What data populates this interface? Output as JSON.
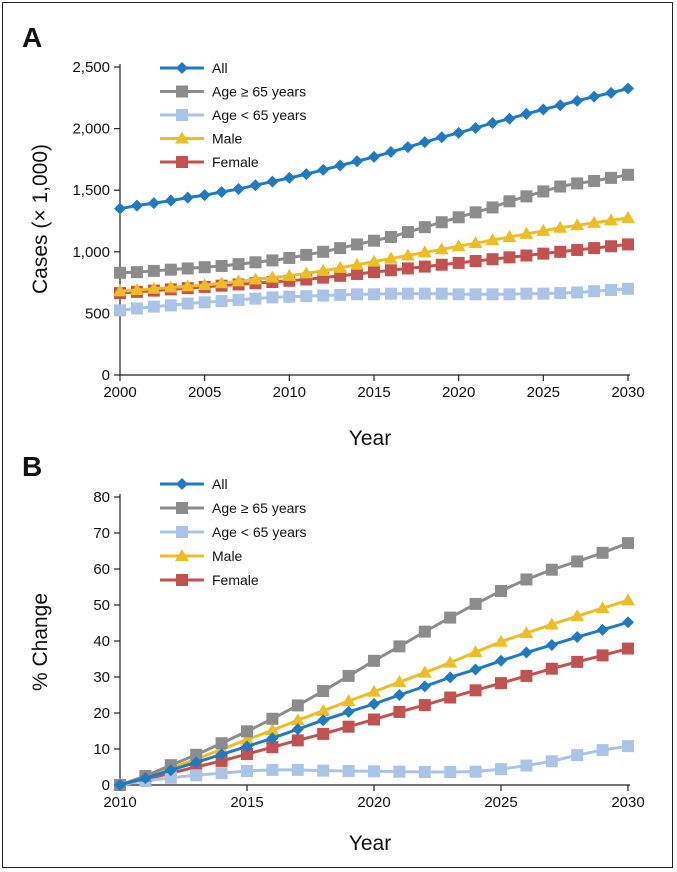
{
  "colors": {
    "All": "#1f7bc1",
    "Age ≥ 65 years": "#8c8c8c",
    "Age < 65 years": "#a9c4e6",
    "Male": "#eebd25",
    "Female": "#c1524f"
  },
  "chart_data": [
    {
      "panel": "A",
      "type": "line",
      "xlabel": "Year",
      "ylabel": "Cases (× 1,000)",
      "xlim": [
        2000,
        2030
      ],
      "ylim": [
        0,
        2500
      ],
      "xticks": [
        "2000",
        "2005",
        "2010",
        "2015",
        "2020",
        "2025",
        "2030"
      ],
      "yticks": [
        "0",
        "500",
        "1,000",
        "1,500",
        "2,000",
        "2,500"
      ],
      "legend_position": "top-left",
      "x": [
        2000,
        2001,
        2002,
        2003,
        2004,
        2005,
        2006,
        2007,
        2008,
        2009,
        2010,
        2011,
        2012,
        2013,
        2014,
        2015,
        2016,
        2017,
        2018,
        2019,
        2020,
        2021,
        2022,
        2023,
        2024,
        2025,
        2026,
        2027,
        2028,
        2029,
        2030
      ],
      "series": [
        {
          "name": "All",
          "marker": "diamond",
          "values": [
            1350,
            1375,
            1395,
            1415,
            1440,
            1460,
            1485,
            1510,
            1540,
            1570,
            1600,
            1630,
            1665,
            1700,
            1735,
            1770,
            1810,
            1850,
            1890,
            1930,
            1965,
            2005,
            2045,
            2080,
            2120,
            2155,
            2190,
            2225,
            2260,
            2290,
            2325
          ]
        },
        {
          "name": "Age ≥ 65 years",
          "marker": "square",
          "values": [
            830,
            835,
            845,
            855,
            865,
            875,
            885,
            900,
            915,
            930,
            950,
            975,
            1000,
            1030,
            1060,
            1090,
            1120,
            1160,
            1200,
            1240,
            1280,
            1320,
            1360,
            1410,
            1450,
            1490,
            1530,
            1555,
            1575,
            1600,
            1625
          ]
        },
        {
          "name": "Age < 65 years",
          "marker": "square",
          "values": [
            525,
            540,
            555,
            565,
            580,
            590,
            600,
            610,
            620,
            630,
            635,
            640,
            645,
            650,
            655,
            655,
            660,
            660,
            660,
            660,
            655,
            655,
            655,
            655,
            660,
            660,
            665,
            670,
            680,
            690,
            700
          ]
        },
        {
          "name": "Male",
          "marker": "triangle",
          "values": [
            680,
            690,
            700,
            710,
            720,
            730,
            745,
            760,
            775,
            790,
            805,
            825,
            845,
            870,
            895,
            920,
            945,
            970,
            995,
            1020,
            1045,
            1070,
            1095,
            1120,
            1145,
            1170,
            1195,
            1215,
            1235,
            1255,
            1275
          ]
        },
        {
          "name": "Female",
          "marker": "square",
          "values": [
            665,
            675,
            685,
            695,
            705,
            715,
            725,
            735,
            745,
            755,
            765,
            775,
            790,
            805,
            820,
            835,
            850,
            865,
            880,
            895,
            910,
            925,
            940,
            955,
            970,
            985,
            1000,
            1015,
            1030,
            1045,
            1060
          ]
        }
      ]
    },
    {
      "panel": "B",
      "type": "line",
      "xlabel": "Year",
      "ylabel": "% Change",
      "xlim": [
        2010,
        2030
      ],
      "ylim": [
        0,
        80
      ],
      "xticks": [
        "2010",
        "2015",
        "2020",
        "2025",
        "2030"
      ],
      "yticks": [
        "0",
        "10",
        "20",
        "30",
        "40",
        "50",
        "60",
        "70",
        "80"
      ],
      "legend_position": "top-left",
      "x": [
        2010,
        2011,
        2012,
        2013,
        2014,
        2015,
        2016,
        2017,
        2018,
        2019,
        2020,
        2021,
        2022,
        2023,
        2024,
        2025,
        2026,
        2027,
        2028,
        2029,
        2030
      ],
      "series": [
        {
          "name": "All",
          "marker": "diamond",
          "values": [
            0,
            1.9,
            4.1,
            6.3,
            8.5,
            10.7,
            13,
            15.5,
            18,
            20.3,
            22.5,
            25,
            27.4,
            29.9,
            32.1,
            34.5,
            36.8,
            38.9,
            41.1,
            43.1,
            45.2
          ]
        },
        {
          "name": "Age ≥ 65 years",
          "marker": "square",
          "values": [
            0,
            2.5,
            5.5,
            8.4,
            11.6,
            14.9,
            18.4,
            22.1,
            26.1,
            30.3,
            34.5,
            38.5,
            42.6,
            46.5,
            50.3,
            53.9,
            57.1,
            59.8,
            62.1,
            64.5,
            67.2
          ]
        },
        {
          "name": "Age < 65 years",
          "marker": "square",
          "values": [
            0,
            1.1,
            2,
            2.7,
            3.3,
            3.9,
            4.2,
            4.2,
            4,
            3.9,
            3.8,
            3.7,
            3.6,
            3.6,
            3.7,
            4.4,
            5.4,
            6.6,
            8.3,
            9.7,
            10.8
          ]
        },
        {
          "name": "Male",
          "marker": "triangle",
          "values": [
            0,
            2.2,
            4.6,
            7.2,
            9.9,
            12.6,
            15.2,
            18,
            20.6,
            23.3,
            25.9,
            28.6,
            31.2,
            34,
            36.9,
            39.8,
            42.2,
            44.6,
            46.9,
            49.1,
            51.3
          ]
        },
        {
          "name": "Female",
          "marker": "square",
          "values": [
            0,
            1.5,
            3.3,
            5,
            6.7,
            8.6,
            10.5,
            12.4,
            14.2,
            16.2,
            18.2,
            20.3,
            22.2,
            24.3,
            26.3,
            28.3,
            30.3,
            32.3,
            34.2,
            36,
            37.9
          ]
        }
      ]
    }
  ]
}
